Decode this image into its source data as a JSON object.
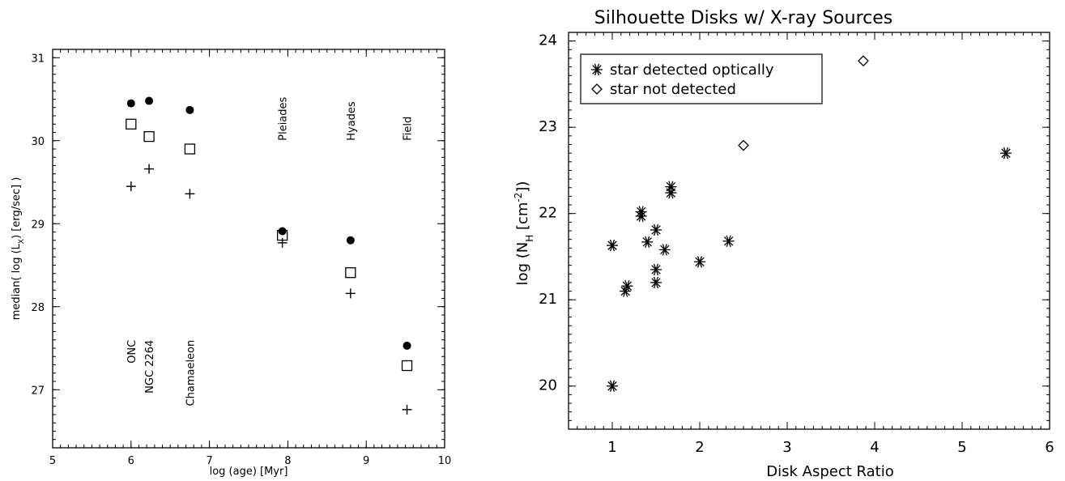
{
  "chart_data": [
    {
      "type": "scatter",
      "xlabel": "log (age) [Myr]",
      "ylabel": "median( log (L",
      "ylabel_sub": "X",
      "ylabel_tail": ") [erg/sec] )",
      "xlim": [
        5,
        10
      ],
      "ylim": [
        26.3,
        31.1
      ],
      "xticks": [
        5,
        6,
        7,
        8,
        9,
        10
      ],
      "yticks": [
        27,
        28,
        29,
        30,
        31
      ],
      "series": [
        {
          "marker": "filled-circle",
          "x": [
            6.0,
            6.23,
            6.75,
            7.93,
            8.8,
            9.52
          ],
          "y": [
            30.45,
            30.48,
            30.37,
            28.91,
            28.8,
            27.53
          ]
        },
        {
          "marker": "open-square",
          "x": [
            6.0,
            6.23,
            6.75,
            7.93,
            8.8,
            9.52
          ],
          "y": [
            30.2,
            30.05,
            29.9,
            28.86,
            28.41,
            27.29
          ]
        },
        {
          "marker": "plus",
          "x": [
            6.0,
            6.23,
            6.75,
            7.93,
            8.8,
            9.52
          ],
          "y": [
            29.45,
            29.66,
            29.36,
            28.77,
            28.16,
            26.76
          ]
        }
      ],
      "annotations": [
        {
          "text": "ONC",
          "x": 6.0,
          "y": 27.6
        },
        {
          "text": "NGC 2264",
          "x": 6.23,
          "y": 27.6
        },
        {
          "text": "Chamaeleon",
          "x": 6.75,
          "y": 27.6
        },
        {
          "text": "Pleiades",
          "x": 7.93,
          "y": 30.0
        },
        {
          "text": "Hyades",
          "x": 8.8,
          "y": 30.0
        },
        {
          "text": "Field",
          "x": 9.52,
          "y": 30.0
        }
      ]
    },
    {
      "type": "scatter",
      "title": "Silhouette Disks w/ X-ray Sources",
      "xlabel": "Disk Aspect Ratio",
      "ylabel_parts": [
        "log (N",
        "H",
        " [cm",
        "-2",
        "])"
      ],
      "xlim": [
        0.5,
        6
      ],
      "ylim": [
        19.5,
        24.1
      ],
      "xticks": [
        1,
        2,
        3,
        4,
        5,
        6
      ],
      "yticks": [
        20,
        21,
        22,
        23,
        24
      ],
      "legend_position": "top-left",
      "series": [
        {
          "name": "star detected optically",
          "marker": "asterisk",
          "x": [
            1.0,
            1.0,
            1.15,
            1.17,
            1.33,
            1.33,
            1.4,
            1.5,
            1.5,
            1.5,
            1.6,
            1.67,
            1.67,
            2.0,
            2.33,
            5.5
          ],
          "y": [
            20.0,
            21.63,
            21.1,
            21.16,
            21.97,
            22.02,
            21.67,
            21.2,
            21.35,
            21.81,
            21.58,
            22.24,
            22.31,
            21.44,
            21.68,
            22.7
          ]
        },
        {
          "name": "star not detected",
          "marker": "open-diamond",
          "x": [
            2.5,
            3.87
          ],
          "y": [
            22.79,
            23.77
          ]
        }
      ]
    }
  ]
}
